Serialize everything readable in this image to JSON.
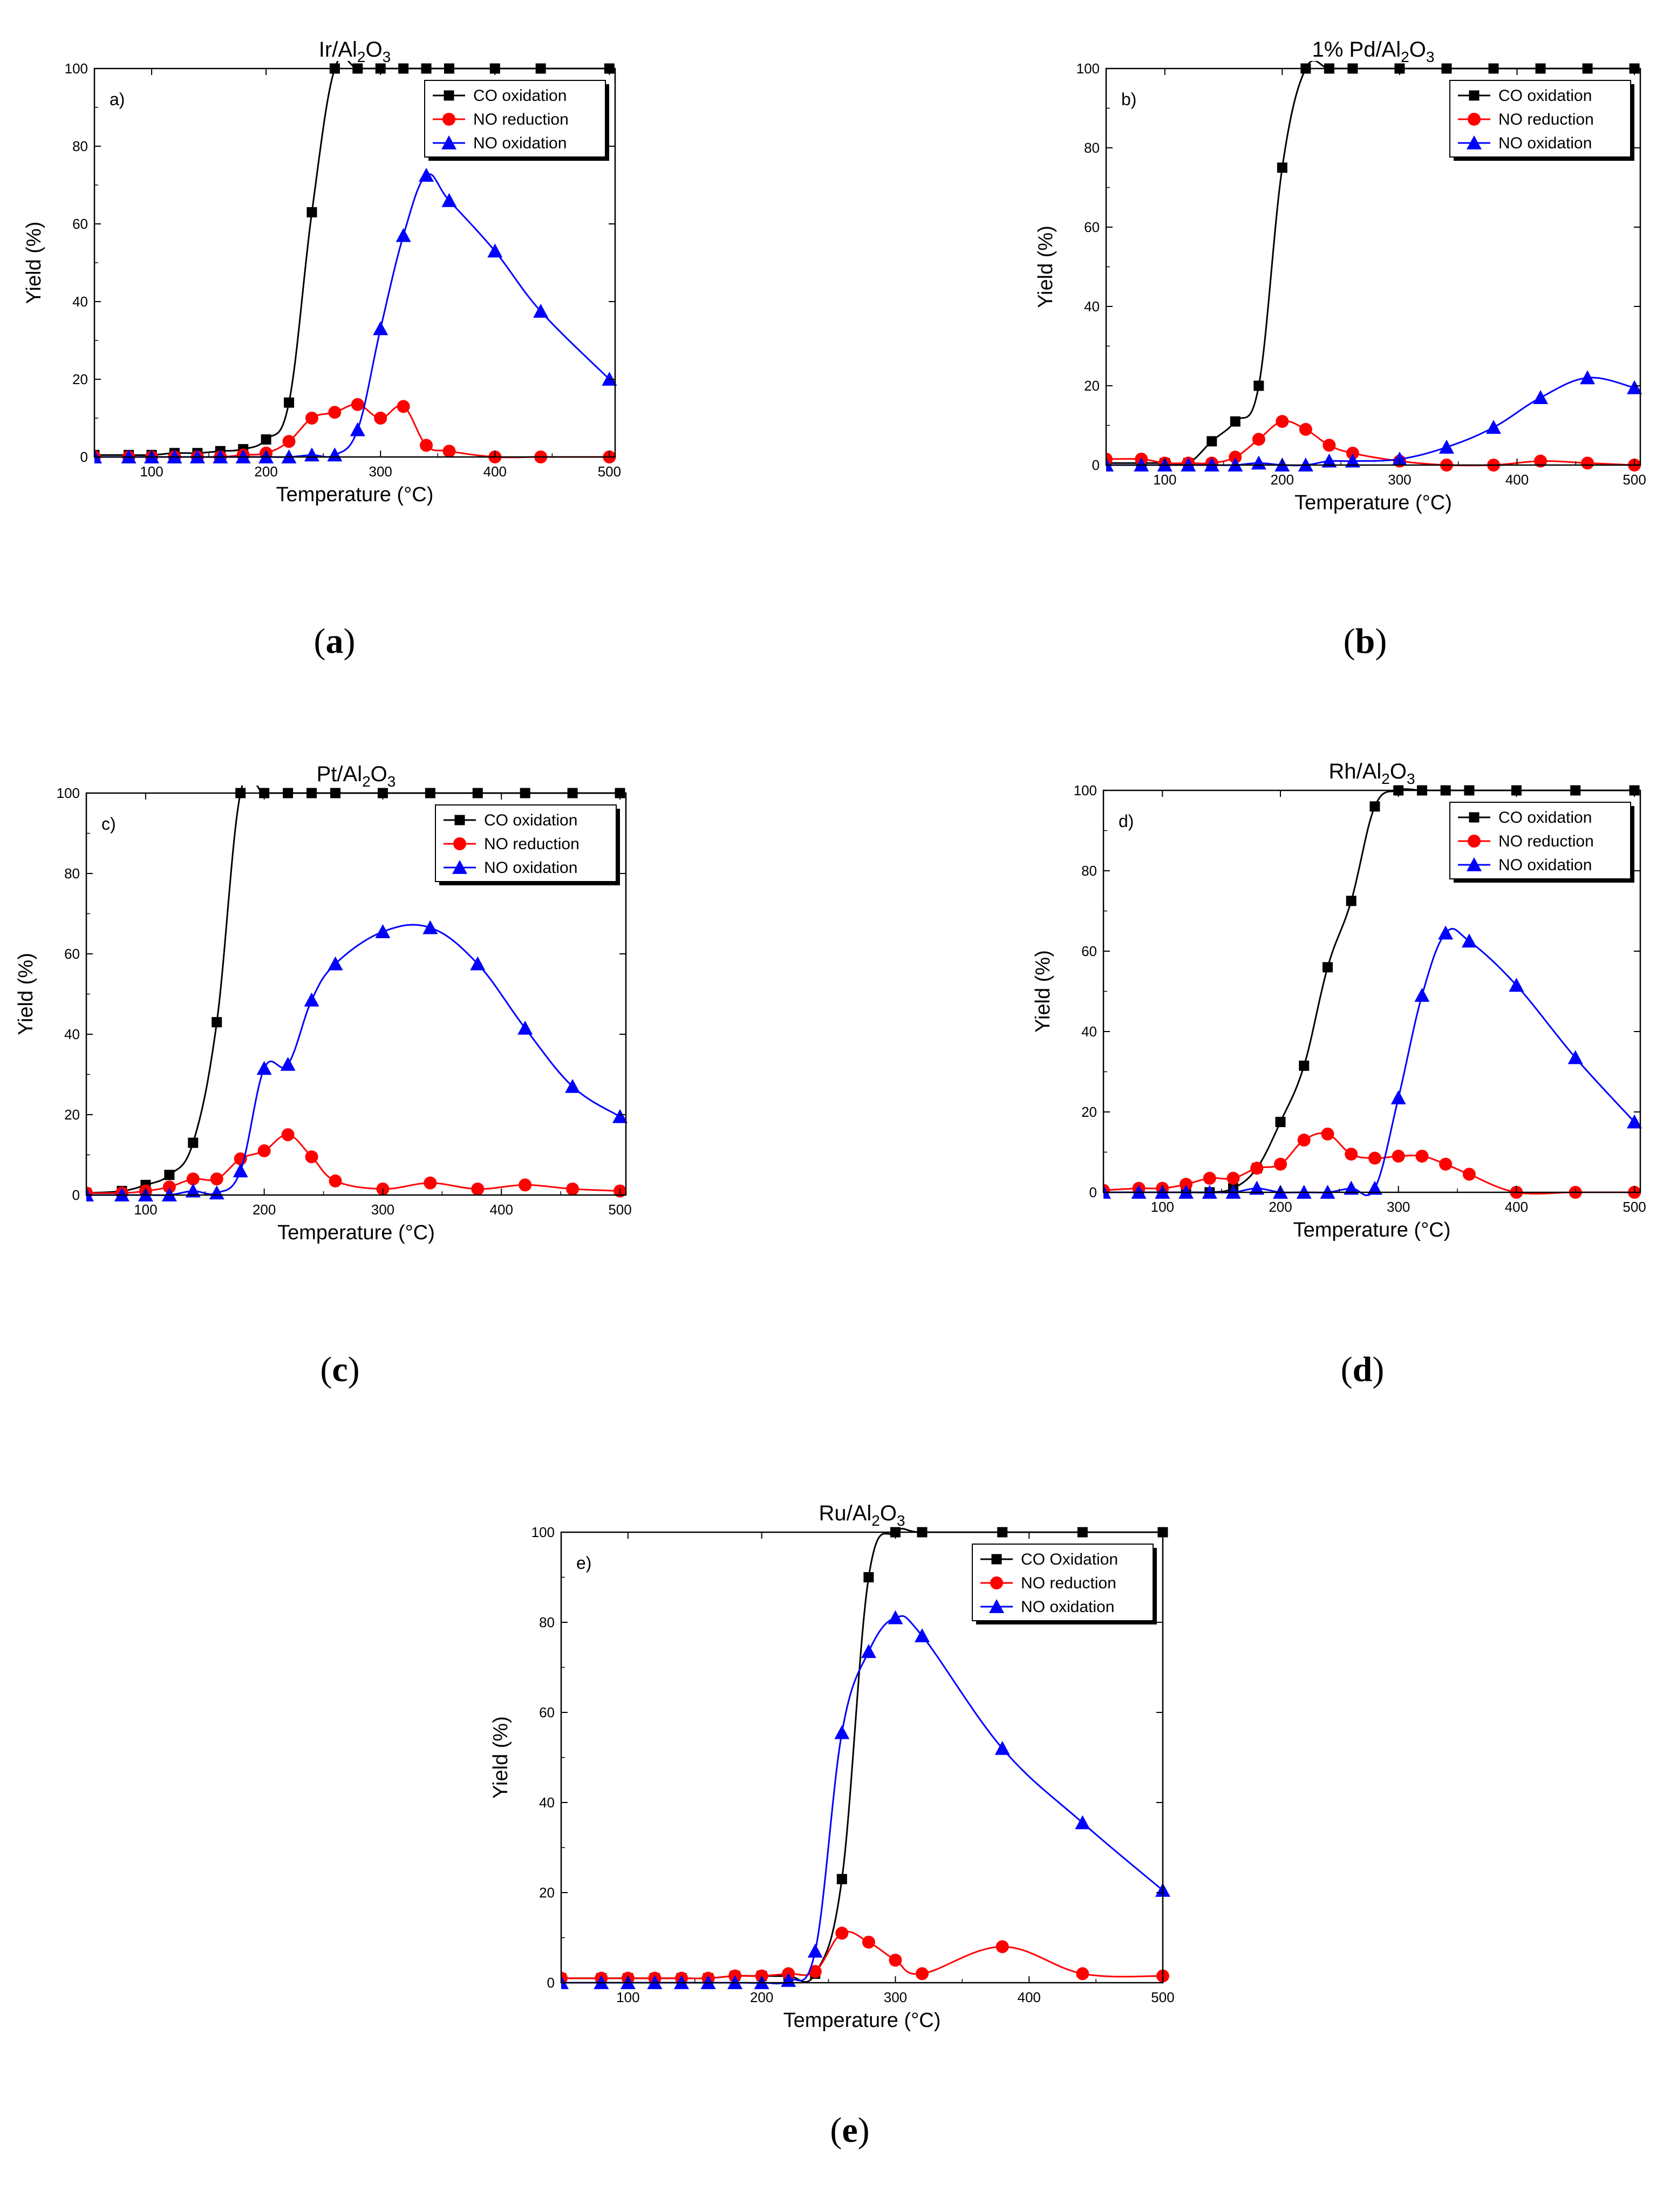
{
  "figure": {
    "colors": {
      "co_oxidation": "#000000",
      "no_reduction": "#ff0000",
      "no_oxidation": "#0000ff",
      "axes": "#000000",
      "legend_shadow": "#000000"
    },
    "markers": {
      "co_oxidation": "square",
      "no_reduction": "circle",
      "no_oxidation": "triangle-up"
    }
  },
  "chart_data": [
    {
      "id": "a",
      "type": "line",
      "title_prefix": "Ir/Al",
      "title_sub1": "2",
      "title_mid": "O",
      "title_sub2": "3",
      "panel_label": "a)",
      "caption_open": "(",
      "caption_letter": "a",
      "caption_close": ")",
      "xlabel": "Temperature (°C)",
      "ylabel": "Yield (%)",
      "xlim": [
        50,
        505
      ],
      "ylim": [
        0,
        100
      ],
      "xticks": [
        100,
        200,
        300,
        400,
        500
      ],
      "yticks": [
        0,
        20,
        40,
        60,
        80,
        100
      ],
      "xtick_labels": [
        "100",
        "200",
        "300",
        "400",
        "500"
      ],
      "ytick_labels": [
        "0",
        "20",
        "40",
        "60",
        "80",
        "100"
      ],
      "legend_position": "top-right",
      "series": [
        {
          "name": "CO oxidation",
          "key": "co_oxidation",
          "x": [
            50,
            80,
            100,
            120,
            140,
            160,
            180,
            200,
            220,
            240,
            260,
            280,
            300,
            320,
            340,
            360,
            400,
            440,
            500
          ],
          "y": [
            0.5,
            0.5,
            0.5,
            1,
            1,
            1.5,
            2,
            4.5,
            14,
            63,
            100,
            100,
            100,
            100,
            100,
            100,
            100,
            100,
            100
          ]
        },
        {
          "name": "NO reduction",
          "key": "no_reduction",
          "x": [
            50,
            80,
            100,
            120,
            140,
            160,
            180,
            200,
            220,
            240,
            260,
            280,
            300,
            320,
            340,
            360,
            400,
            440,
            500
          ],
          "y": [
            0,
            0,
            0,
            0,
            0,
            0,
            0.5,
            1,
            4,
            10,
            11.5,
            13.5,
            10,
            13,
            3,
            1.5,
            0,
            0,
            0
          ]
        },
        {
          "name": "NO oxidation",
          "key": "no_oxidation",
          "x": [
            50,
            80,
            100,
            120,
            140,
            160,
            180,
            200,
            220,
            240,
            260,
            280,
            300,
            320,
            340,
            360,
            400,
            440,
            500
          ],
          "y": [
            0,
            0,
            0,
            0,
            0,
            0,
            0,
            0,
            0,
            0.5,
            0.5,
            7,
            33,
            57,
            72.5,
            66,
            53,
            37.5,
            20
          ]
        }
      ]
    },
    {
      "id": "b",
      "type": "line",
      "title_prefix": "1% Pd/Al",
      "title_sub1": "2",
      "title_mid": "O",
      "title_sub2": "3",
      "panel_label": "b)",
      "caption_open": "(",
      "caption_letter": "b",
      "caption_close": ")",
      "xlabel": "Temperature (°C)",
      "ylabel": "Yield (%)",
      "xlim": [
        50,
        505
      ],
      "ylim": [
        0,
        100
      ],
      "xticks": [
        100,
        200,
        300,
        400,
        500
      ],
      "yticks": [
        0,
        20,
        40,
        60,
        80,
        100
      ],
      "xtick_labels": [
        "100",
        "200",
        "300",
        "400",
        "500"
      ],
      "ytick_labels": [
        "0",
        "20",
        "40",
        "60",
        "80",
        "100"
      ],
      "legend_position": "top-right",
      "series": [
        {
          "name": "CO oxidation",
          "key": "co_oxidation",
          "x": [
            50,
            80,
            100,
            120,
            140,
            160,
            180,
            200,
            220,
            240,
            260,
            300,
            340,
            380,
            420,
            460,
            500
          ],
          "y": [
            0.5,
            0.5,
            0.5,
            0.5,
            6,
            11,
            20,
            75,
            100,
            100,
            100,
            100,
            100,
            100,
            100,
            100,
            100
          ]
        },
        {
          "name": "NO reduction",
          "key": "no_reduction",
          "x": [
            50,
            80,
            100,
            120,
            140,
            160,
            180,
            200,
            220,
            240,
            260,
            300,
            340,
            380,
            420,
            460,
            500
          ],
          "y": [
            1.5,
            1.5,
            0.5,
            0.5,
            0.5,
            2,
            6.5,
            11,
            9,
            5,
            3,
            1,
            0,
            0,
            1,
            0.5,
            0
          ]
        },
        {
          "name": "NO oxidation",
          "key": "no_oxidation",
          "x": [
            50,
            80,
            100,
            120,
            140,
            160,
            180,
            200,
            220,
            240,
            260,
            300,
            340,
            380,
            420,
            460,
            500
          ],
          "y": [
            0,
            0,
            0,
            0,
            0,
            0,
            0.5,
            0,
            0,
            1,
            1,
            1.5,
            4.5,
            9.5,
            17,
            22,
            19.5
          ]
        }
      ]
    },
    {
      "id": "c",
      "type": "line",
      "title_prefix": "Pt/Al",
      "title_sub1": "2",
      "title_mid": "O",
      "title_sub2": "3",
      "panel_label": "c)",
      "caption_open": "(",
      "caption_letter": "c",
      "caption_close": ")",
      "xlabel": "Temperature (°C)",
      "ylabel": "Yield (%)",
      "xlim": [
        50,
        505
      ],
      "ylim": [
        0,
        100
      ],
      "xticks": [
        100,
        200,
        300,
        400,
        500
      ],
      "yticks": [
        0,
        20,
        40,
        60,
        80,
        100
      ],
      "xtick_labels": [
        "100",
        "200",
        "300",
        "400",
        "500"
      ],
      "ytick_labels": [
        "0",
        "20",
        "40",
        "60",
        "80",
        "100"
      ],
      "legend_position": "top-right",
      "series": [
        {
          "name": "CO oxidation",
          "key": "co_oxidation",
          "x": [
            50,
            80,
            100,
            120,
            140,
            160,
            180,
            200,
            220,
            240,
            260,
            300,
            340,
            380,
            420,
            460,
            500
          ],
          "y": [
            0.5,
            1,
            2.5,
            5,
            13,
            43,
            100,
            100,
            100,
            100,
            100,
            100,
            100,
            100,
            100,
            100,
            100
          ]
        },
        {
          "name": "NO reduction",
          "key": "no_reduction",
          "x": [
            50,
            80,
            100,
            120,
            140,
            160,
            180,
            200,
            220,
            240,
            260,
            300,
            340,
            380,
            420,
            460,
            500
          ],
          "y": [
            0.5,
            0.5,
            1,
            2,
            4,
            4,
            9,
            11,
            15,
            9.5,
            3.5,
            1.5,
            3,
            1.5,
            2.5,
            1.5,
            1
          ]
        },
        {
          "name": "NO oxidation",
          "key": "no_oxidation",
          "x": [
            50,
            80,
            100,
            120,
            140,
            160,
            180,
            200,
            220,
            240,
            260,
            300,
            340,
            380,
            420,
            460,
            500
          ],
          "y": [
            0,
            0,
            0,
            0,
            1,
            0.5,
            6,
            31.5,
            32.5,
            48.5,
            57.5,
            65.5,
            66.5,
            57.5,
            41.5,
            27,
            19.5
          ]
        }
      ]
    },
    {
      "id": "d",
      "type": "line",
      "title_prefix": "Rh/Al",
      "title_sub1": "2",
      "title_mid": "O",
      "title_sub2": "3",
      "panel_label": "d)",
      "caption_open": "(",
      "caption_letter": "d",
      "caption_close": ")",
      "xlabel": "Temperature (°C)",
      "ylabel": "Yield (%)",
      "xlim": [
        50,
        505
      ],
      "ylim": [
        0,
        100
      ],
      "xticks": [
        100,
        200,
        300,
        400,
        500
      ],
      "yticks": [
        0,
        20,
        40,
        60,
        80,
        100
      ],
      "xtick_labels": [
        "100",
        "200",
        "300",
        "400",
        "500"
      ],
      "ytick_labels": [
        "0",
        "20",
        "40",
        "60",
        "80",
        "100"
      ],
      "legend_position": "top-right",
      "series": [
        {
          "name": "CO oxidation",
          "key": "co_oxidation",
          "x": [
            50,
            80,
            100,
            120,
            140,
            160,
            180,
            200,
            220,
            240,
            260,
            280,
            300,
            320,
            340,
            360,
            400,
            450,
            500
          ],
          "y": [
            0,
            0,
            0,
            0,
            0,
            1,
            6,
            17.5,
            31.5,
            56,
            72.5,
            96,
            100,
            100,
            100,
            100,
            100,
            100,
            100
          ]
        },
        {
          "name": "NO reduction",
          "key": "no_reduction",
          "x": [
            50,
            80,
            100,
            120,
            140,
            160,
            180,
            200,
            220,
            240,
            260,
            280,
            300,
            320,
            340,
            360,
            400,
            450,
            500
          ],
          "y": [
            0.5,
            1,
            1,
            2,
            3.5,
            3.5,
            6,
            7,
            13,
            14.5,
            9.5,
            8.5,
            9,
            9,
            7,
            4.5,
            0,
            0,
            0
          ]
        },
        {
          "name": "NO oxidation",
          "key": "no_oxidation",
          "x": [
            50,
            80,
            100,
            120,
            140,
            160,
            180,
            200,
            220,
            240,
            260,
            280,
            300,
            320,
            340,
            360,
            400,
            450,
            500
          ],
          "y": [
            0,
            0,
            0,
            0,
            0,
            0,
            1,
            0,
            0,
            0,
            1,
            1,
            23.5,
            49,
            64.5,
            62.5,
            51.5,
            33.5,
            17.5
          ]
        }
      ]
    },
    {
      "id": "e",
      "type": "line",
      "title_prefix": "Ru/Al",
      "title_sub1": "2",
      "title_mid": "O",
      "title_sub2": "3",
      "panel_label": "e)",
      "caption_open": "(",
      "caption_letter": "e",
      "caption_close": ")",
      "xlabel": "Temperature (°C)",
      "ylabel": "Yield (%)",
      "xlim": [
        50,
        500
      ],
      "ylim": [
        0,
        100
      ],
      "xticks": [
        100,
        200,
        300,
        400,
        500
      ],
      "yticks": [
        0,
        20,
        40,
        60,
        80,
        100
      ],
      "xtick_labels": [
        "100",
        "200",
        "300",
        "400",
        "500"
      ],
      "ytick_labels": [
        "0",
        "20",
        "40",
        "60",
        "80",
        "100"
      ],
      "legend_position": "top-right",
      "series": [
        {
          "name": "CO Oxidation",
          "key": "co_oxidation",
          "x": [
            50,
            80,
            100,
            120,
            140,
            160,
            180,
            200,
            220,
            240,
            260,
            280,
            300,
            320,
            380,
            440,
            500
          ],
          "y": [
            1,
            1,
            1,
            1,
            1,
            1,
            1.5,
            1.5,
            1.5,
            2,
            23,
            90,
            100,
            100,
            100,
            100,
            100
          ]
        },
        {
          "name": "NO reduction",
          "key": "no_reduction",
          "x": [
            50,
            80,
            100,
            120,
            140,
            160,
            180,
            200,
            220,
            240,
            260,
            280,
            300,
            320,
            380,
            440,
            500
          ],
          "y": [
            1,
            1,
            1,
            1,
            1,
            1,
            1.5,
            1.5,
            2,
            2.5,
            11,
            9,
            5,
            2,
            8,
            2,
            1.5
          ]
        },
        {
          "name": "NO oxidation",
          "key": "no_oxidation",
          "x": [
            50,
            80,
            100,
            120,
            140,
            160,
            180,
            200,
            220,
            240,
            260,
            280,
            300,
            320,
            380,
            440,
            500
          ],
          "y": [
            0,
            0,
            0,
            0,
            0,
            0,
            0,
            0,
            0.5,
            7,
            55.5,
            73.5,
            81,
            77,
            52,
            35.5,
            20.5
          ]
        }
      ]
    }
  ]
}
